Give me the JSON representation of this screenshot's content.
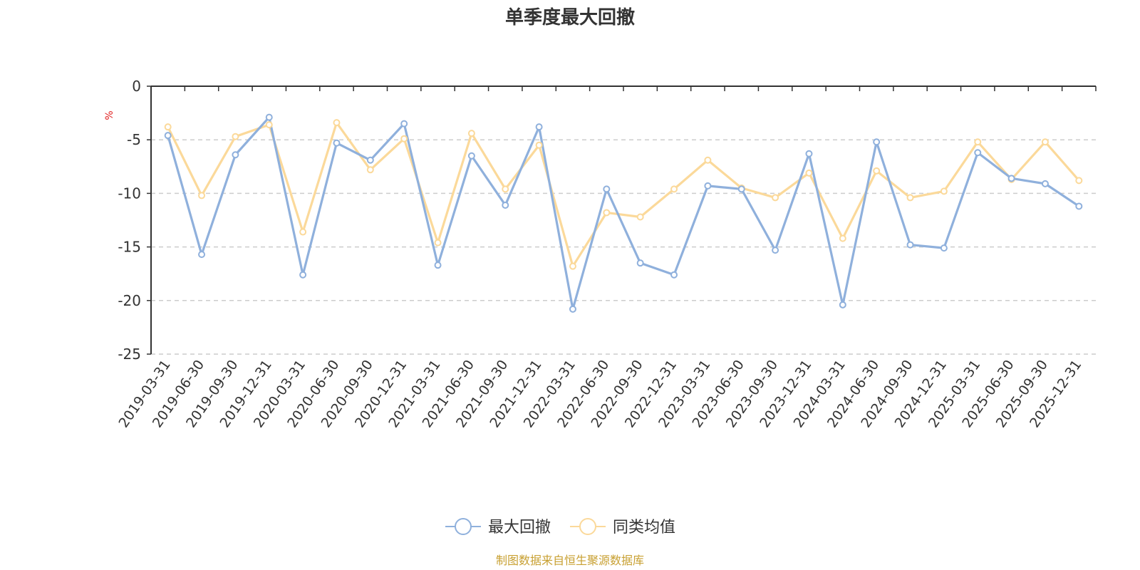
{
  "chart_data": {
    "type": "line",
    "title": "单季度最大回撤",
    "ylabel": "%",
    "xlabel": "",
    "ylim": [
      -25,
      0
    ],
    "yticks": [
      0,
      -5,
      -10,
      -15,
      -20,
      -25
    ],
    "grid": true,
    "legend": "bottom-center",
    "categories": [
      "2019-03-31",
      "2019-06-30",
      "2019-09-30",
      "2019-12-31",
      "2020-03-31",
      "2020-06-30",
      "2020-09-30",
      "2020-12-31",
      "2021-03-31",
      "2021-06-30",
      "2021-09-30",
      "2021-12-31",
      "2022-03-31",
      "2022-06-30",
      "2022-09-30",
      "2022-12-31",
      "2023-03-31",
      "2023-06-30",
      "2023-09-30",
      "2023-12-31",
      "2024-03-31",
      "2024-06-30",
      "2024-09-30",
      "2024-12-31",
      "2025-03-31",
      "2025-06-30",
      "2025-09-30",
      "2025-12-31"
    ],
    "series": [
      {
        "name": "最大回撤",
        "color": "#8fb0dc",
        "values": [
          -4.6,
          -15.7,
          -6.4,
          -2.9,
          -17.6,
          -5.3,
          -6.9,
          -3.5,
          -16.7,
          -6.5,
          -11.1,
          -3.8,
          -20.8,
          -9.6,
          -16.5,
          -17.6,
          -9.3,
          -9.6,
          -15.3,
          -6.3,
          -20.4,
          -5.2,
          -14.8,
          -15.1,
          -6.2,
          -8.6,
          -9.1,
          -11.2
        ]
      },
      {
        "name": "同类均值",
        "color": "#fbd99a",
        "values": [
          -3.8,
          -10.2,
          -4.7,
          -3.6,
          -13.6,
          -3.4,
          -7.8,
          -4.9,
          -14.6,
          -4.4,
          -9.6,
          -5.5,
          -16.8,
          -11.8,
          -12.2,
          -9.6,
          -6.9,
          -9.5,
          -10.4,
          -8.1,
          -14.2,
          -7.9,
          -10.4,
          -9.8,
          -5.2,
          -8.7,
          -5.2,
          -8.8
        ]
      }
    ]
  },
  "source_text": "制图数据来自恒生聚源数据库"
}
